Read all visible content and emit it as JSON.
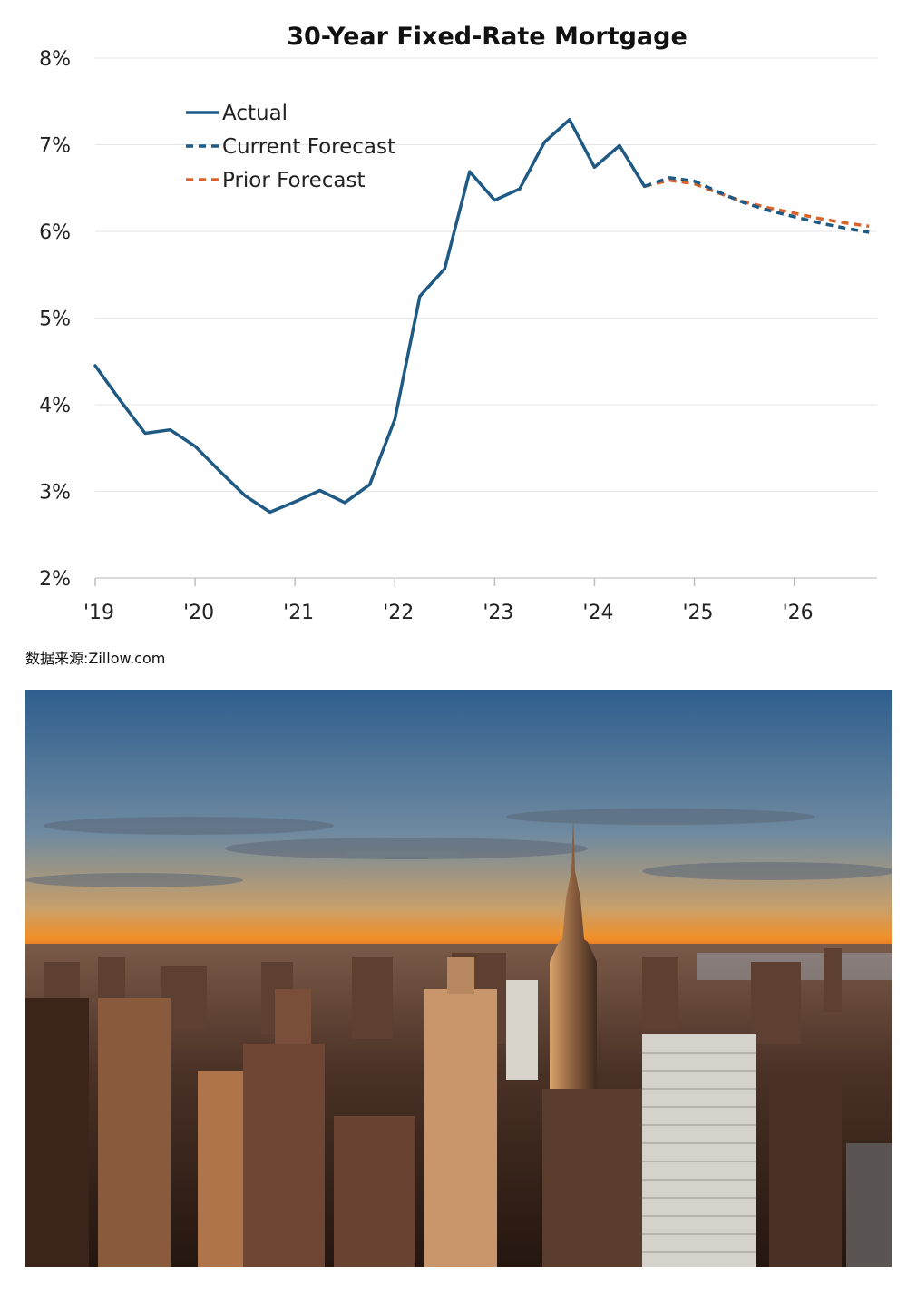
{
  "chart_data": {
    "type": "line",
    "title": "30-Year Fixed-Rate Mortgage",
    "ylim": [
      2,
      8
    ],
    "y_ticks": [
      "2%",
      "3%",
      "4%",
      "5%",
      "6%",
      "7%",
      "8%"
    ],
    "x_ticks": [
      "'19",
      "'20",
      "'21",
      "'22",
      "'23",
      "'24",
      "'25",
      "'26"
    ],
    "xlim": [
      2019,
      2026.83
    ],
    "grid": true,
    "legend_position": "top-left",
    "series": [
      {
        "name": "Actual",
        "style": "solid",
        "color": "#1f5a85",
        "x": [
          2019.0,
          2019.25,
          2019.5,
          2019.75,
          2020.0,
          2020.25,
          2020.5,
          2020.75,
          2021.0,
          2021.25,
          2021.5,
          2021.75,
          2022.0,
          2022.25,
          2022.5,
          2022.75,
          2023.0,
          2023.25,
          2023.5,
          2023.75,
          2024.0,
          2024.25,
          2024.5
        ],
        "values": [
          4.45,
          4.05,
          3.67,
          3.71,
          3.52,
          3.23,
          2.95,
          2.76,
          2.88,
          3.01,
          2.87,
          3.08,
          3.83,
          5.25,
          5.57,
          6.69,
          6.36,
          6.49,
          7.03,
          7.29,
          6.74,
          6.99,
          6.52
        ]
      },
      {
        "name": "Current Forecast",
        "style": "dashed",
        "color": "#1f5a85",
        "x": [
          2024.5,
          2024.75,
          2025.0,
          2025.25,
          2025.5,
          2025.75,
          2026.0,
          2026.25,
          2026.5,
          2026.75
        ],
        "values": [
          6.52,
          6.62,
          6.58,
          6.45,
          6.33,
          6.24,
          6.17,
          6.1,
          6.04,
          5.99
        ]
      },
      {
        "name": "Prior Forecast",
        "style": "dashed",
        "color": "#d9622b",
        "x": [
          2024.5,
          2024.75,
          2025.0,
          2025.25,
          2025.5,
          2025.75,
          2026.0,
          2026.25,
          2026.5,
          2026.75
        ],
        "values": [
          6.52,
          6.59,
          6.55,
          6.44,
          6.34,
          6.27,
          6.21,
          6.15,
          6.1,
          6.06
        ]
      }
    ]
  },
  "source_note": "数据来源:Zillow.com",
  "photo": {
    "icon": "city-skyline-sunset-photo",
    "colors": {
      "sky_top": "#2e5d8c",
      "horizon": "#e8731e",
      "city": "#3a2a22"
    }
  }
}
